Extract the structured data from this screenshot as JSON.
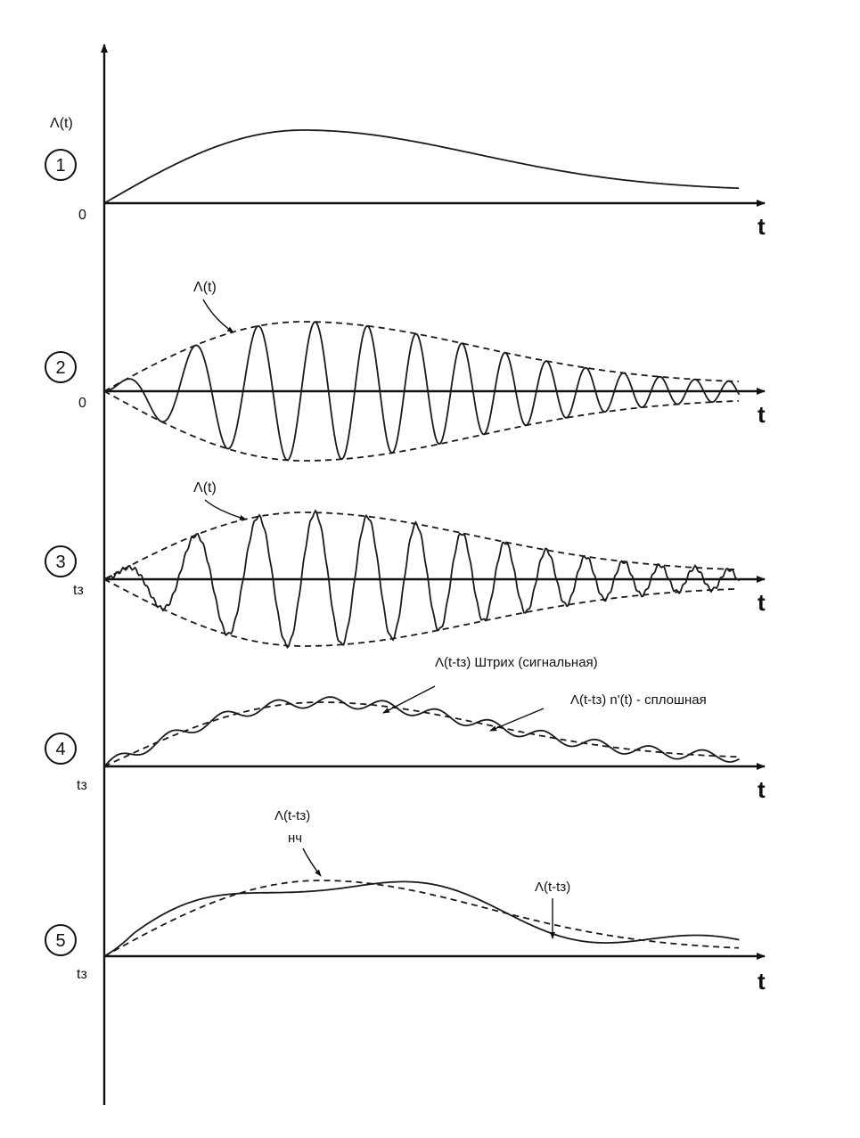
{
  "panels": [
    {
      "number": "1",
      "ylabel": "Λ(t)",
      "origin_label": "0",
      "t_label": "t",
      "annotations": []
    },
    {
      "number": "2",
      "origin_label": "0",
      "t_label": "t",
      "annotations": [
        "Λ(t)"
      ]
    },
    {
      "number": "3",
      "origin_label": "tз",
      "t_label": "t",
      "annotations": [
        "Λ(t)"
      ]
    },
    {
      "number": "4",
      "origin_label": "tз",
      "t_label": "t",
      "annotations": [
        "Λ(t-tз) Штрих (сигнальная)",
        "Λ(t-tз) n'(t) - сплошная"
      ]
    },
    {
      "number": "5",
      "origin_label": "tз",
      "t_label": "t",
      "annotations": [
        "Λ(t-tз)",
        "нч",
        "Λ(t-tз)"
      ]
    }
  ]
}
